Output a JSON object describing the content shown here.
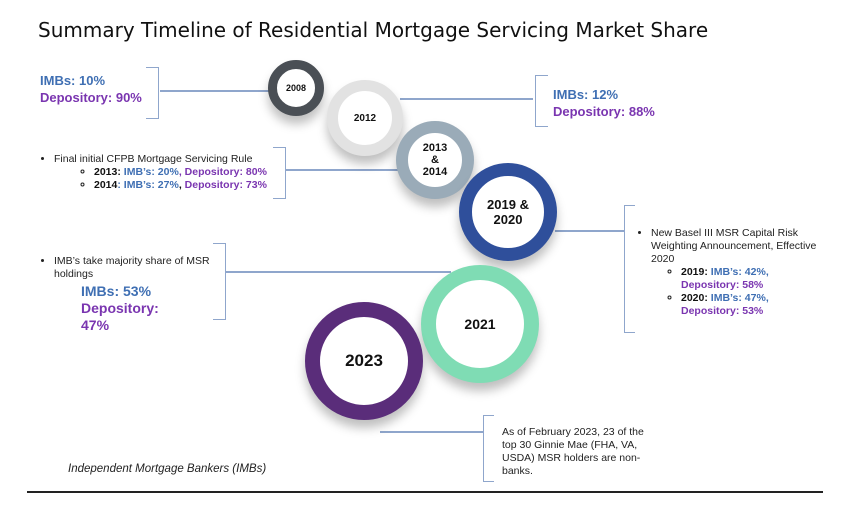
{
  "title": "Summary Timeline of Residential Mortgage Servicing Market Share",
  "milestones": [
    {
      "year": "2008",
      "color": "#4a4f55"
    },
    {
      "year": "2012",
      "color": "#e2e2e2"
    },
    {
      "year": "2013 & 2014",
      "color": "#9aabb8"
    },
    {
      "year": "2019 & 2020",
      "color": "#2f4f9b"
    },
    {
      "year": "2021",
      "color": "#7fdcb4"
    },
    {
      "year": "2023",
      "color": "#5a2d7a"
    }
  ],
  "y2008": {
    "imbs": "IMBs: 10%",
    "dep": "Depository: 90%"
  },
  "y2012": {
    "imbs": "IMBs: 12%",
    "dep": "Depository: 88%"
  },
  "y2013": {
    "bullet": "Final initial CFPB Mortgage Servicing Rule",
    "l1y": "2013:",
    "l1i": "IMB’s: 20%",
    "l1s": ", ",
    "l1d": "Depository: 80%",
    "l2y": "2014",
    "l2c": ": ",
    "l2i": "IMB’s: 27%",
    "l2s": ", ",
    "l2d": "Depository: 73%"
  },
  "y2019": {
    "bullet": "New Basel III MSR Capital Risk Weighting Announcement, Effective 2020",
    "l1y": "2019:",
    "l1i": "IMB’s: 42%,",
    "l1d": "Depository: 58%",
    "l2y": "2020:",
    "l2i": "IMB’s: 47%,",
    "l2d": "Depository: 53%"
  },
  "y2021": {
    "bullet": "IMB’s take majority share of MSR holdings",
    "imbs": "IMBs: 53%",
    "dep1": "Depository:",
    "dep2": "47%"
  },
  "y2023": {
    "note": "As of February 2023, 23 of the top 30 Ginnie Mae (FHA, VA, USDA) MSR holders are non-banks."
  },
  "footnote": "Independent Mortgage Bankers (IMBs)",
  "colors": {
    "blue": "#3f6fb3",
    "purple": "#7a35b0"
  }
}
